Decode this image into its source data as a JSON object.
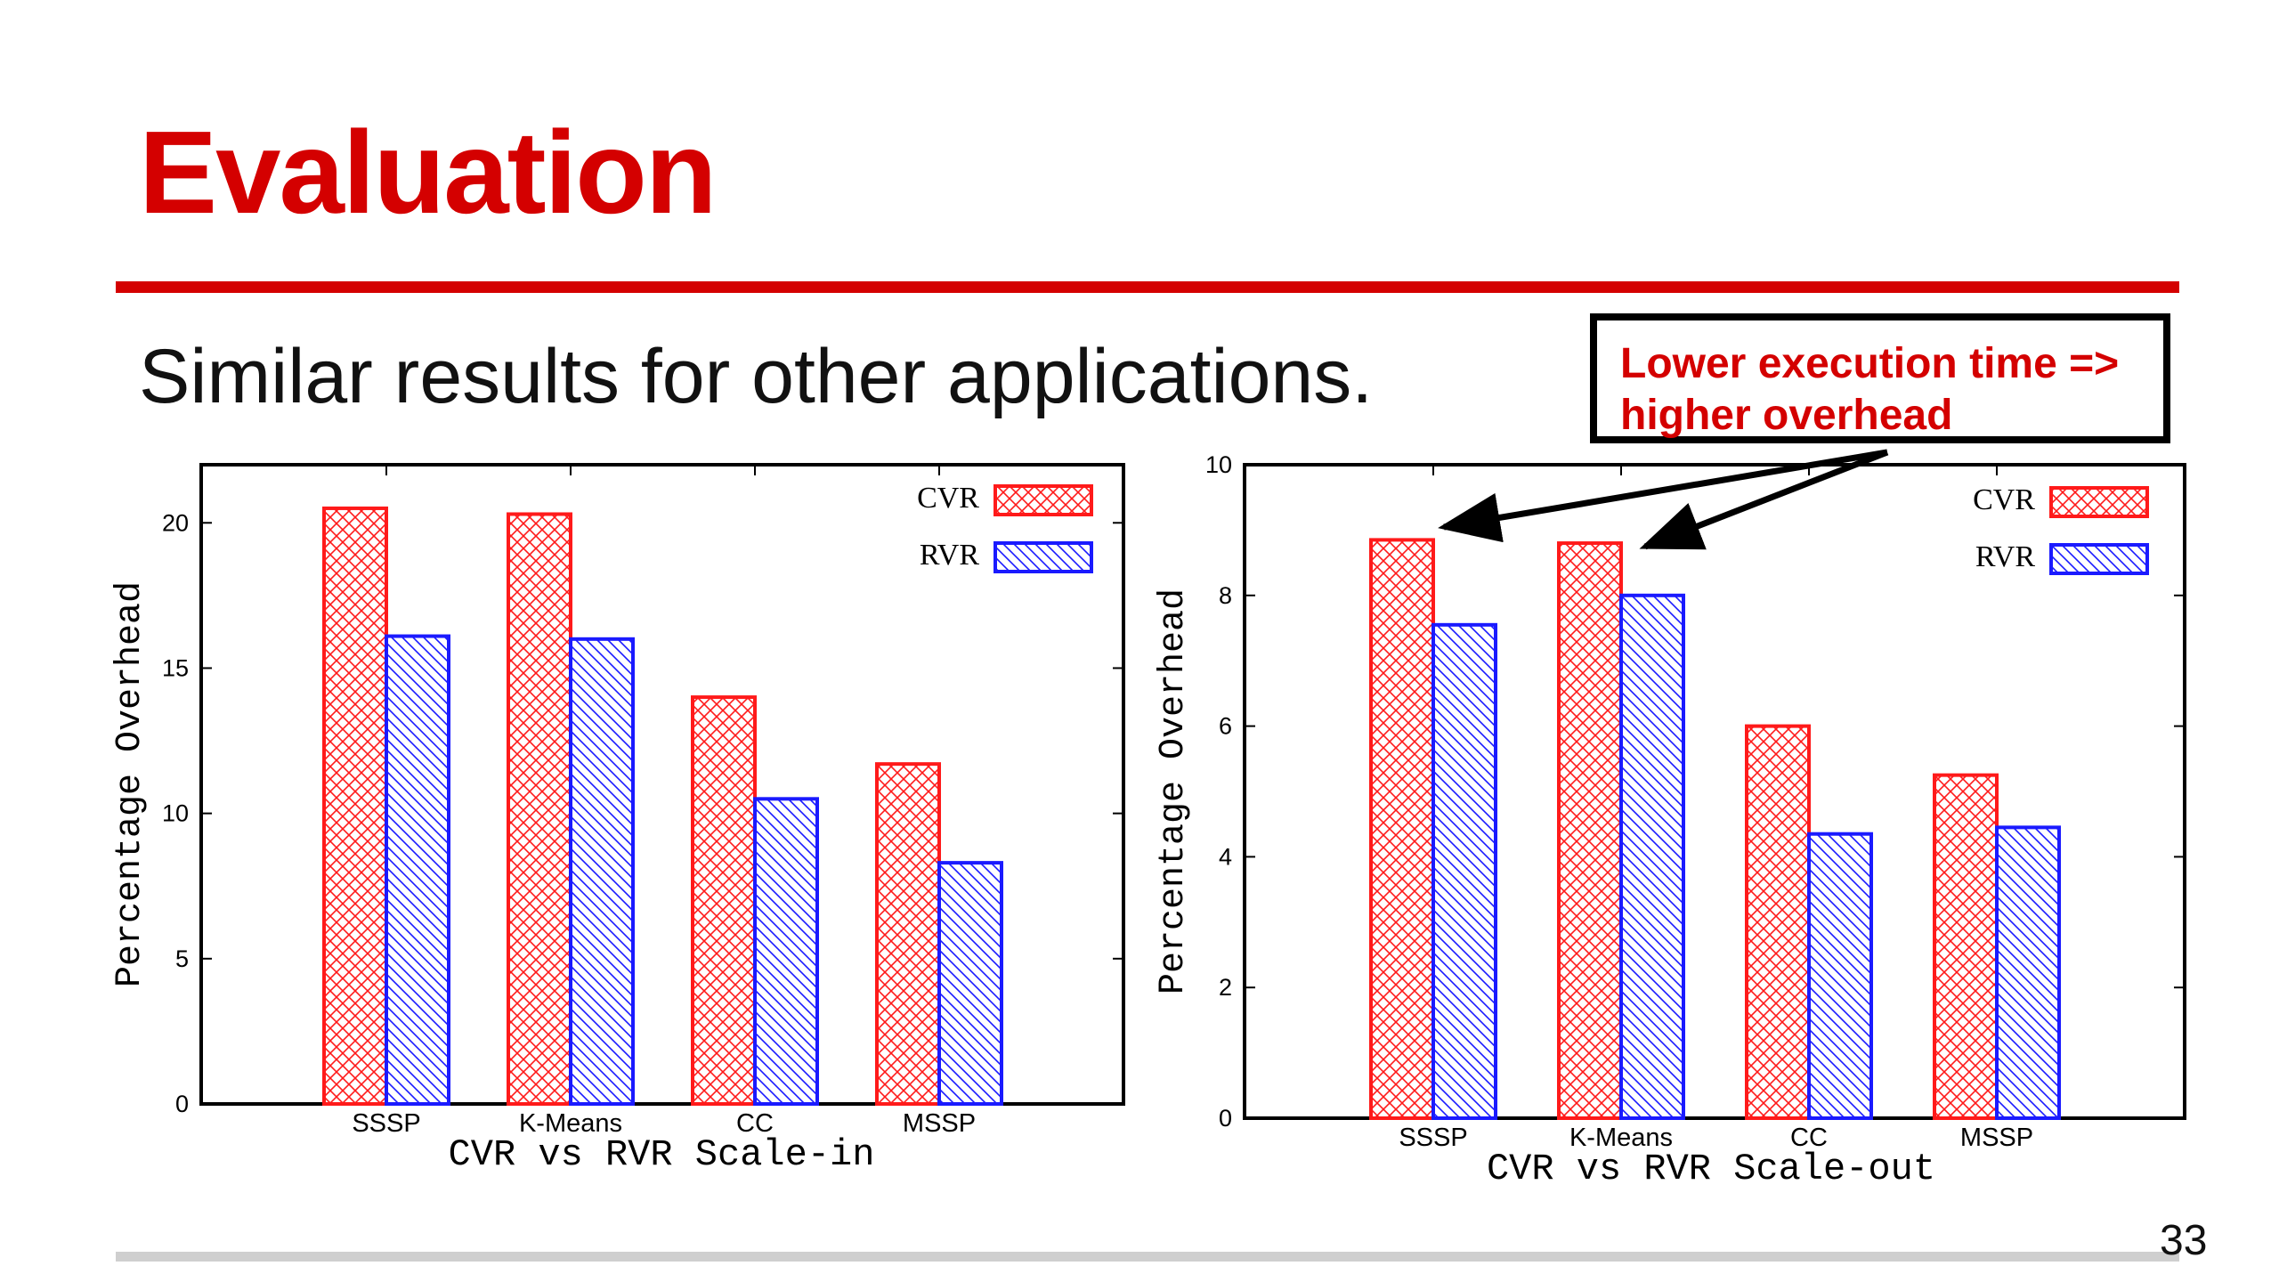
{
  "slide": {
    "title": "Evaluation",
    "subtitle": "Similar results for other applications.",
    "callout_line1": "Lower execution time =>",
    "callout_line2": "higher overhead",
    "page_number": "33"
  },
  "colors": {
    "accent": "#d40000",
    "cvr": "#ff1a1a",
    "rvr": "#1a1aff",
    "footer_rule": "#cfcfcf"
  },
  "chart_data": [
    {
      "type": "bar",
      "title": "CVR vs RVR Scale-in",
      "xlabel": "",
      "ylabel": "Percentage Overhead",
      "categories": [
        "SSSP",
        "K-Means",
        "CC",
        "MSSP"
      ],
      "series": [
        {
          "name": "CVR",
          "values": [
            20.5,
            20.3,
            14.0,
            11.7
          ]
        },
        {
          "name": "RVR",
          "values": [
            16.1,
            16.0,
            10.5,
            8.3
          ]
        }
      ],
      "ylim": [
        0,
        22
      ],
      "yticks": [
        0,
        5,
        10,
        15,
        20
      ],
      "legend": "top-right",
      "grid": false
    },
    {
      "type": "bar",
      "title": "CVR vs RVR Scale-out",
      "xlabel": "",
      "ylabel": "Percentage Overhead",
      "categories": [
        "SSSP",
        "K-Means",
        "CC",
        "MSSP"
      ],
      "series": [
        {
          "name": "CVR",
          "values": [
            8.85,
            8.8,
            6.0,
            5.25
          ]
        },
        {
          "name": "RVR",
          "values": [
            7.55,
            8.0,
            4.35,
            4.45
          ]
        }
      ],
      "ylim": [
        0,
        10
      ],
      "yticks": [
        0,
        2,
        4,
        6,
        8,
        10
      ],
      "legend": "top-right",
      "grid": false
    }
  ]
}
